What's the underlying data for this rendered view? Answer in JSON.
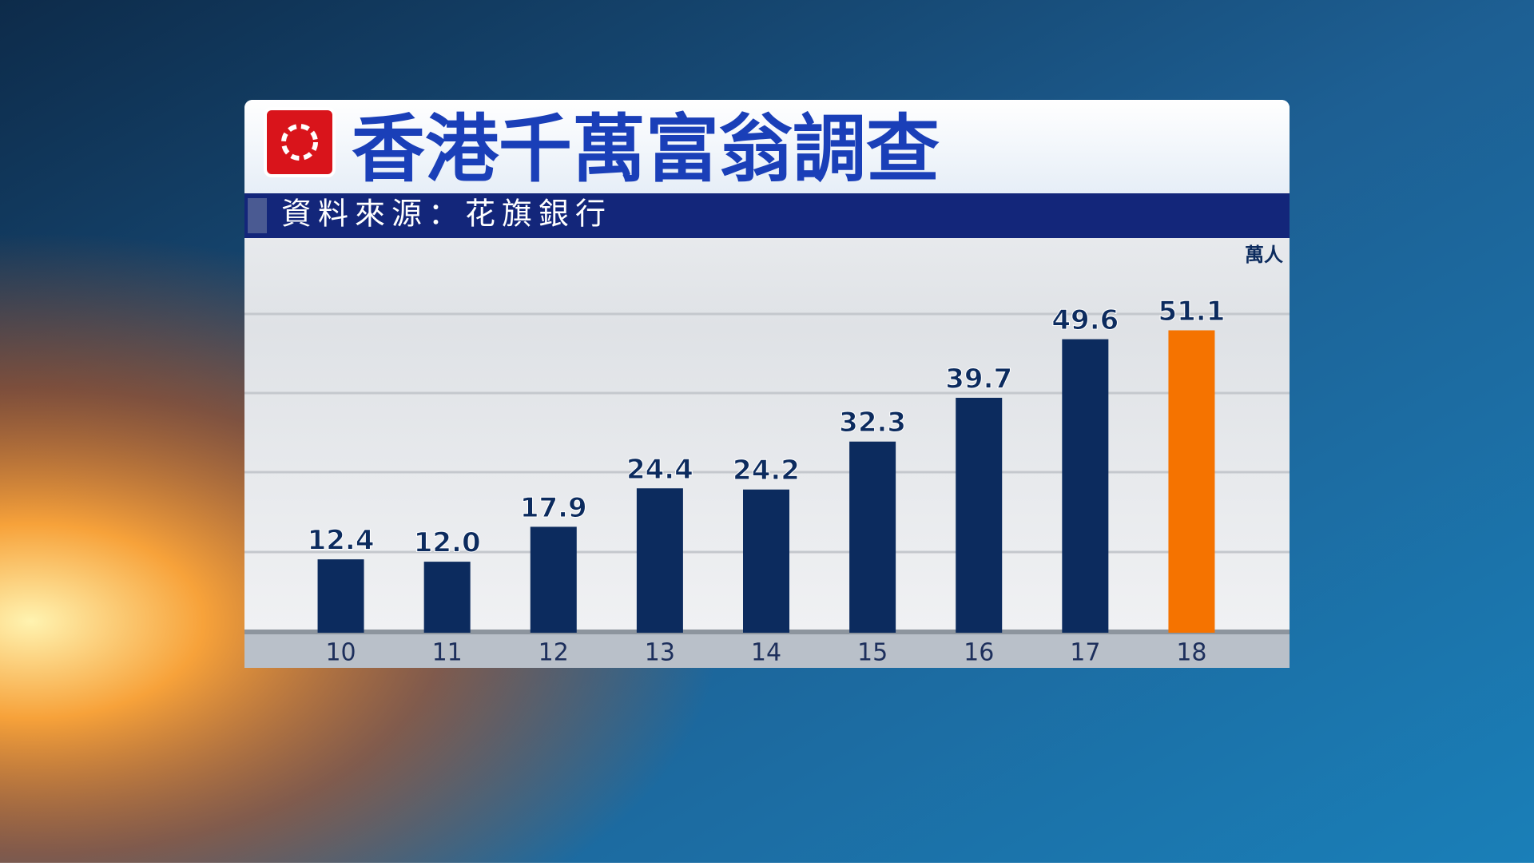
{
  "chart_data": {
    "type": "bar",
    "title": "香港千萬富翁調查",
    "subtitle": "資料來源：花旗銀行",
    "unit_label": "萬人",
    "categories": [
      "10",
      "11",
      "12",
      "13",
      "14",
      "15",
      "16",
      "17",
      "18"
    ],
    "values": [
      12.4,
      12.0,
      17.9,
      24.4,
      24.2,
      32.3,
      39.7,
      49.6,
      51.1
    ],
    "value_labels": [
      "12.4",
      "12.0",
      "17.9",
      "24.4",
      "24.2",
      "32.3",
      "39.7",
      "49.6",
      "51.1"
    ],
    "colors": [
      "#0c2b5e",
      "#0c2b5e",
      "#0c2b5e",
      "#0c2b5e",
      "#0c2b5e",
      "#0c2b5e",
      "#0c2b5e",
      "#0c2b5e",
      "#f57300"
    ],
    "ylim": [
      0,
      54
    ]
  }
}
